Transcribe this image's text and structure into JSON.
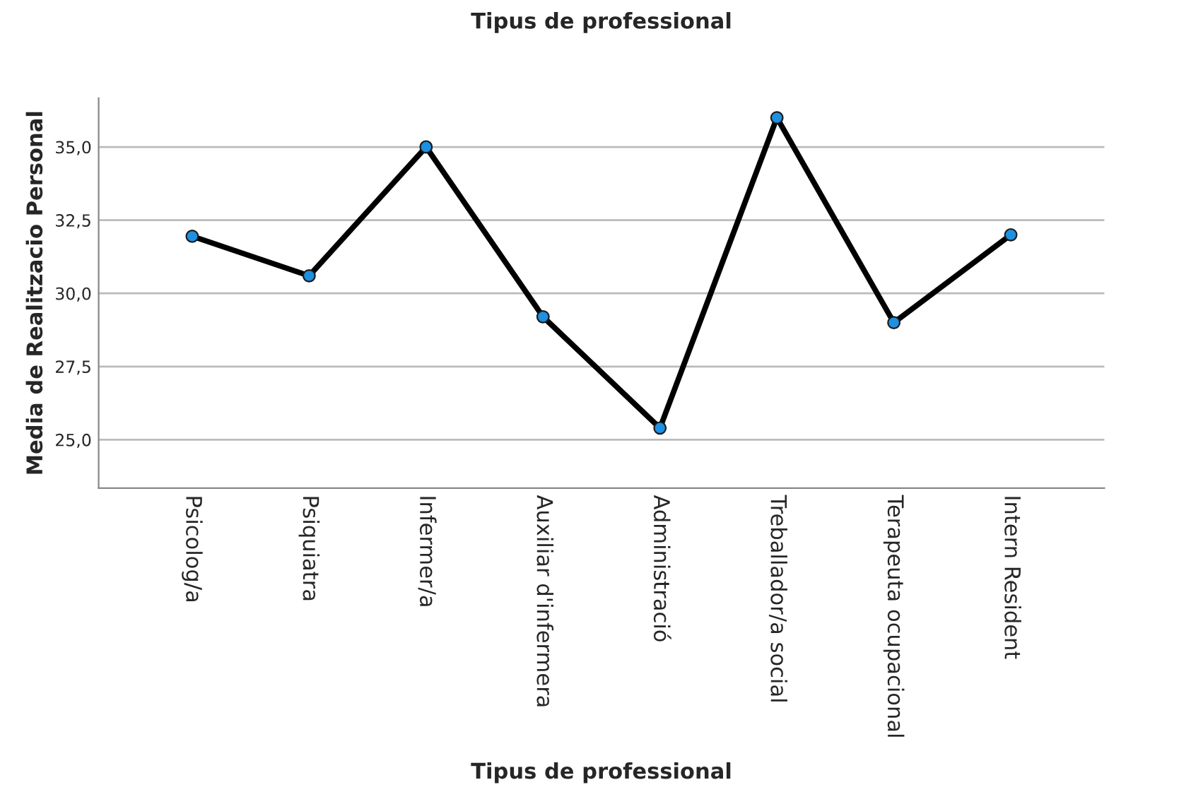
{
  "chart_data": {
    "type": "line",
    "title": "Tipus de professional",
    "xlabel": "Tipus de professional",
    "ylabel": "Media de Realitzacio Personal",
    "categories": [
      "Psicolog/a",
      "Psiquiatra",
      "Infermer/a",
      "Auxiliar d'infermera",
      "Administració",
      "Treballador/a social",
      "Terapeuta ocupacional",
      "Intern Resident"
    ],
    "series": [
      {
        "color": "#000000",
        "values": [
          31.95,
          30.6,
          35.0,
          29.2,
          25.4,
          36.0,
          29.0,
          32.0
        ]
      }
    ],
    "ylim": [
      23.35,
      36.67
    ],
    "yticks": [
      {
        "value": 25,
        "label": "25,0"
      },
      {
        "value": 27.5,
        "label": "27,5"
      },
      {
        "value": 30,
        "label": "30,0"
      },
      {
        "value": 32.5,
        "label": "32,5"
      },
      {
        "value": 35,
        "label": "35,0"
      }
    ],
    "grid": "y",
    "marker": "circle",
    "line_style": "solid"
  }
}
